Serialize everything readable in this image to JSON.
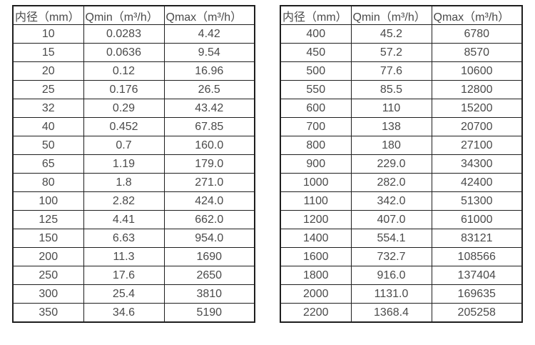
{
  "colors": {
    "background": "#ffffff",
    "text": "#4a4a4a",
    "border": "#1e1e1e"
  },
  "tables": [
    {
      "name": "flow-rate-table-small-diameters",
      "headers": [
        "内径（mm）",
        "Qmin（m³/h）",
        "Qmax（m³/h）"
      ],
      "rows": [
        [
          "10",
          "0.0283",
          "4.42"
        ],
        [
          "15",
          "0.0636",
          "9.54"
        ],
        [
          "20",
          "0.12",
          "16.96"
        ],
        [
          "25",
          "0.176",
          "26.5"
        ],
        [
          "32",
          "0.29",
          "43.42"
        ],
        [
          "40",
          "0.452",
          "67.85"
        ],
        [
          "50",
          "0.7",
          "160.0"
        ],
        [
          "65",
          "1.19",
          "179.0"
        ],
        [
          "80",
          "1.8",
          "271.0"
        ],
        [
          "100",
          "2.82",
          "424.0"
        ],
        [
          "125",
          "4.41",
          "662.0"
        ],
        [
          "150",
          "6.63",
          "954.0"
        ],
        [
          "200",
          "11.3",
          "1690"
        ],
        [
          "250",
          "17.6",
          "2650"
        ],
        [
          "300",
          "25.4",
          "3810"
        ],
        [
          "350",
          "34.6",
          "5190"
        ]
      ]
    },
    {
      "name": "flow-rate-table-large-diameters",
      "headers": [
        "内径（mm）",
        "Qmin（m³/h）",
        "Qmax（m³/h）"
      ],
      "rows": [
        [
          "400",
          "45.2",
          "6780"
        ],
        [
          "450",
          "57.2",
          "8570"
        ],
        [
          "500",
          "77.6",
          "10600"
        ],
        [
          "550",
          "85.5",
          "12800"
        ],
        [
          "600",
          "110",
          "15200"
        ],
        [
          "700",
          "138",
          "20700"
        ],
        [
          "800",
          "180",
          "27100"
        ],
        [
          "900",
          "229.0",
          "34300"
        ],
        [
          "1000",
          "282.0",
          "42400"
        ],
        [
          "1100",
          "342.0",
          "51300"
        ],
        [
          "1200",
          "407.0",
          "61000"
        ],
        [
          "1400",
          "554.1",
          "83121"
        ],
        [
          "1600",
          "732.7",
          "108566"
        ],
        [
          "1800",
          "916.0",
          "137404"
        ],
        [
          "2000",
          "1131.0",
          "169635"
        ],
        [
          "2200",
          "1368.4",
          "205258"
        ]
      ]
    }
  ]
}
